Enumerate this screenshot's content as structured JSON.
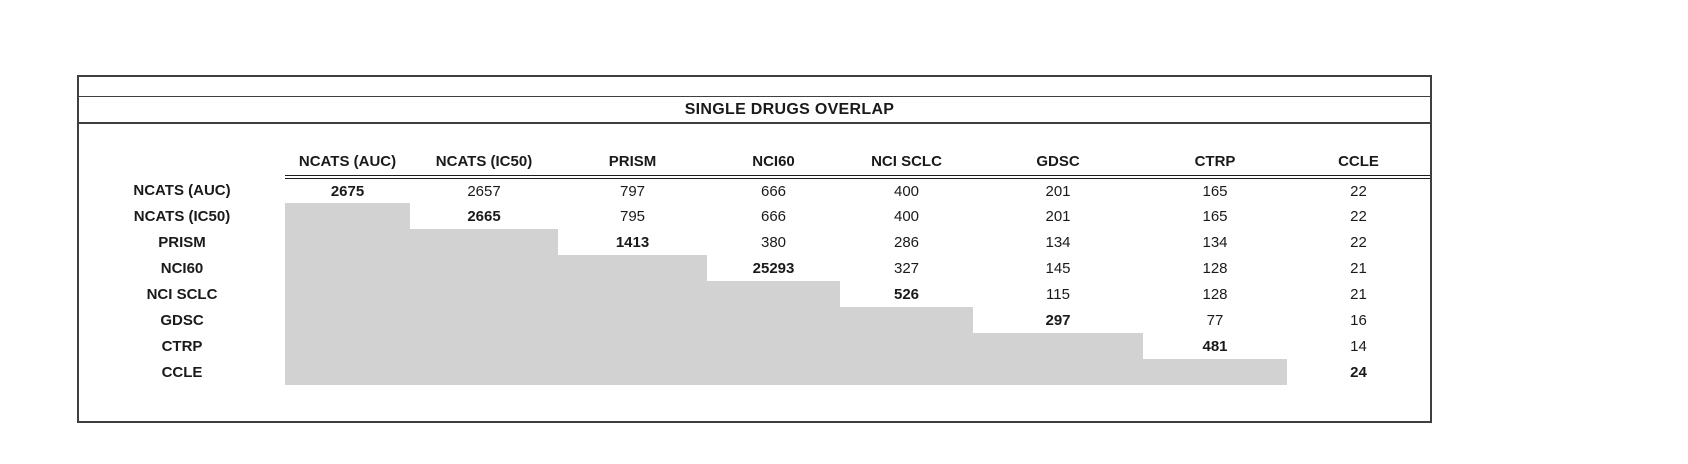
{
  "chart_data": {
    "type": "table",
    "title": "SINGLE DRUGS OVERLAP",
    "description_note": "",
    "categories": [
      "NCATS (AUC)",
      "NCATS (IC50)",
      "PRISM",
      "NCI60",
      "NCI SCLC",
      "GDSC",
      "CTRP",
      "CCLE"
    ],
    "rows": [
      {
        "label": "NCATS (AUC)",
        "values": [
          2675,
          2657,
          797,
          666,
          400,
          201,
          165,
          22
        ]
      },
      {
        "label": "NCATS (IC50)",
        "values": [
          null,
          2665,
          795,
          666,
          400,
          201,
          165,
          22
        ]
      },
      {
        "label": "PRISM",
        "values": [
          null,
          null,
          1413,
          380,
          286,
          134,
          134,
          22
        ]
      },
      {
        "label": "NCI60",
        "values": [
          null,
          null,
          null,
          25293,
          327,
          145,
          128,
          21
        ]
      },
      {
        "label": "NCI SCLC",
        "values": [
          null,
          null,
          null,
          null,
          526,
          115,
          128,
          21
        ]
      },
      {
        "label": "GDSC",
        "values": [
          null,
          null,
          null,
          null,
          null,
          297,
          77,
          16
        ]
      },
      {
        "label": "CTRP",
        "values": [
          null,
          null,
          null,
          null,
          null,
          null,
          481,
          14
        ]
      },
      {
        "label": "CCLE",
        "values": [
          null,
          null,
          null,
          null,
          null,
          null,
          null,
          24
        ]
      }
    ],
    "layout_hints": {
      "diagonal_bold": true,
      "lower_triangle_shaded": true,
      "shade_color": "#d2d2d2",
      "grid": "off",
      "header_underline": "double"
    }
  }
}
